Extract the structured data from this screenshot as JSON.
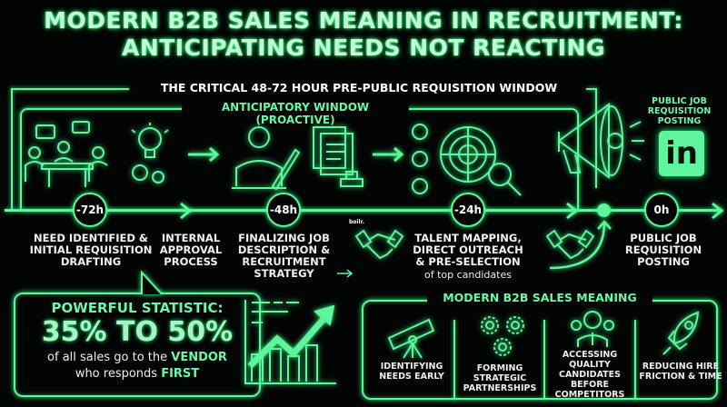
{
  "title": {
    "line1": "MODERN B2B SALES MEANING IN RECRUITMENT:",
    "line2": "ANTICIPATING NEEDS NOT REACTING"
  },
  "window_label": "THE CRITICAL 48-72 HOUR PRE-PUBLIC REQUISITION WINDOW",
  "anticipatory_label": "ANTICIPATORY WINDOW (PROACTIVE)",
  "public_posting_label": "PUBLIC JOB REQUISITION POSTING",
  "linkedin_logo": "in",
  "watermark": "boilr.",
  "timeline": [
    {
      "time": "-72h",
      "label": "NEED IDENTIFIED & INITIAL REQUISITION DRAFTING"
    },
    {
      "time": "-48h",
      "label": "FINALIZING JOB DESCRIPTION & RECRUITMENT STRATEGY"
    },
    {
      "time": "-24h",
      "label": "TALENT MAPPING, DIRECT OUTREACH & PRE-SELECTION",
      "sublabel": "of top candidates"
    },
    {
      "time": "0h",
      "label": "PUBLIC JOB REQUISITION POSTING"
    }
  ],
  "internal_approval": "INTERNAL APPROVAL PROCESS",
  "statistic": {
    "heading": "POWERFUL STATISTIC:",
    "value": "35% TO 50%",
    "text_a": "of all sales go to the ",
    "highlight_a": "VENDOR",
    "text_b": "who responds ",
    "highlight_b": "FIRST"
  },
  "modern_meaning": {
    "heading": "MODERN B2B SALES MEANING",
    "items": [
      {
        "icon": "telescope-icon",
        "label": "IDENTIFYING NEEDS EARLY"
      },
      {
        "icon": "gears-icon",
        "label": "FORMING STRATEGIC PARTNERSHIPS"
      },
      {
        "icon": "candidates-icon",
        "label": "ACCESSING QUALITY CANDIDATES BEFORE COMPETITORS"
      },
      {
        "icon": "rocket-icon",
        "label": "REDUCING HIRE FRICTION & TIME"
      }
    ]
  },
  "colors": {
    "accent": "#5ff59d",
    "background": "#030504",
    "title": "#c6f7d6"
  }
}
